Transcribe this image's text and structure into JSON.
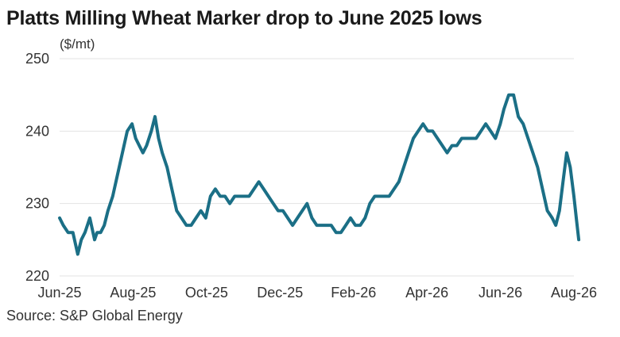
{
  "title": "Platts Milling Wheat Marker drop to June 2025 lows",
  "unit_label": "($/mt)",
  "source": "Source: S&P Global Energy",
  "colors": {
    "line": "#1b6f86",
    "grid": "#e3e3e3",
    "text": "#333333"
  },
  "chart_data": {
    "type": "line",
    "title": "Platts Milling Wheat Marker drop to June 2025 lows",
    "ylabel": "($/mt)",
    "xlabel": "",
    "ylim": [
      220,
      250
    ],
    "y_ticks": [
      220,
      230,
      240,
      250
    ],
    "x_ticks": [
      "Jun-25",
      "Aug-25",
      "Oct-25",
      "Dec-25",
      "Feb-26",
      "Apr-26",
      "Jun-26",
      "Aug-26"
    ],
    "grid": "horizontal",
    "legend": "none",
    "series": [
      {
        "x": [
          "2025-06-01",
          "2025-06-04",
          "2025-06-08",
          "2025-06-12",
          "2025-06-16",
          "2025-06-19",
          "2025-06-22",
          "2025-06-26",
          "2025-06-30",
          "2025-07-02",
          "2025-07-05",
          "2025-07-08",
          "2025-07-11",
          "2025-07-15",
          "2025-07-19",
          "2025-07-23",
          "2025-07-27",
          "2025-07-31",
          "2025-08-03",
          "2025-08-06",
          "2025-08-09",
          "2025-08-12",
          "2025-08-16",
          "2025-08-19",
          "2025-08-22",
          "2025-08-25",
          "2025-08-29",
          "2025-09-02",
          "2025-09-06",
          "2025-09-10",
          "2025-09-14",
          "2025-09-18",
          "2025-09-22",
          "2025-09-26",
          "2025-09-30",
          "2025-10-04",
          "2025-10-08",
          "2025-10-12",
          "2025-10-16",
          "2025-10-20",
          "2025-10-24",
          "2025-10-28",
          "2025-11-01",
          "2025-11-05",
          "2025-11-09",
          "2025-11-13",
          "2025-11-17",
          "2025-11-21",
          "2025-11-25",
          "2025-11-29",
          "2025-12-03",
          "2025-12-07",
          "2025-12-11",
          "2025-12-15",
          "2025-12-19",
          "2025-12-23",
          "2025-12-27",
          "2025-12-31",
          "2026-01-04",
          "2026-01-08",
          "2026-01-12",
          "2026-01-16",
          "2026-01-20",
          "2026-01-24",
          "2026-01-28",
          "2026-02-01",
          "2026-02-05",
          "2026-02-09",
          "2026-02-13",
          "2026-02-17",
          "2026-02-21",
          "2026-02-25",
          "2026-03-01",
          "2026-03-05",
          "2026-03-09",
          "2026-03-13",
          "2026-03-17",
          "2026-03-21",
          "2026-03-25",
          "2026-03-29",
          "2026-04-02",
          "2026-04-06",
          "2026-04-10",
          "2026-04-14",
          "2026-04-18",
          "2026-04-22",
          "2026-04-26",
          "2026-04-30",
          "2026-05-04",
          "2026-05-08",
          "2026-05-12",
          "2026-05-16",
          "2026-05-20",
          "2026-05-24",
          "2026-05-28",
          "2026-06-01",
          "2026-06-04",
          "2026-06-08",
          "2026-06-12",
          "2026-06-16",
          "2026-06-20",
          "2026-06-24",
          "2026-06-28",
          "2026-07-02",
          "2026-07-06",
          "2026-07-10",
          "2026-07-14",
          "2026-07-17",
          "2026-07-20",
          "2026-07-23",
          "2026-07-26",
          "2026-07-29",
          "2026-08-01",
          "2026-08-03",
          "2026-08-05"
        ],
        "values": [
          228,
          227,
          226,
          226,
          223,
          225,
          226,
          228,
          225,
          226,
          226,
          227,
          229,
          231,
          234,
          237,
          240,
          241,
          239,
          238,
          237,
          238,
          240,
          242,
          239,
          237,
          235,
          232,
          229,
          228,
          227,
          227,
          228,
          229,
          228,
          231,
          232,
          231,
          231,
          230,
          231,
          231,
          231,
          231,
          232,
          233,
          232,
          231,
          230,
          229,
          229,
          228,
          227,
          228,
          229,
          230,
          228,
          227,
          227,
          227,
          227,
          226,
          226,
          227,
          228,
          227,
          227,
          228,
          230,
          231,
          231,
          231,
          231,
          232,
          233,
          235,
          237,
          239,
          240,
          241,
          240,
          240,
          239,
          238,
          237,
          238,
          238,
          239,
          239,
          239,
          239,
          240,
          241,
          240,
          239,
          241,
          243,
          245,
          245,
          242,
          241,
          239,
          237,
          235,
          232,
          229,
          228,
          227,
          229,
          233,
          237,
          235,
          231,
          228,
          225
        ]
      }
    ]
  }
}
